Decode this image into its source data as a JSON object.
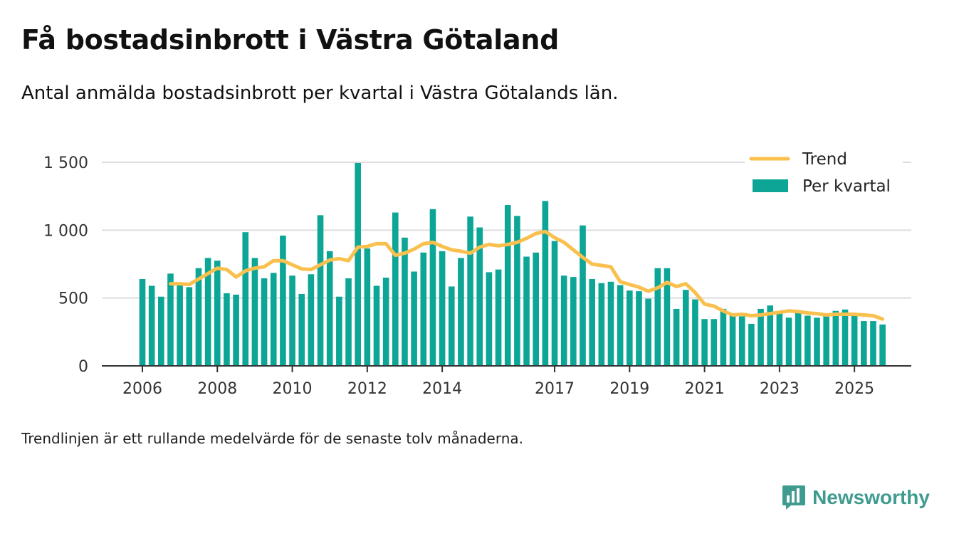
{
  "header": {
    "title": "Få bostadsinbrott i Västra Götaland",
    "subtitle": "Antal anmälda bostadsinbrott per kvartal i Västra Götalands län."
  },
  "footer": {
    "note": "Trendlinjen är ett rullande medelvärde för de senaste tolv månaderna.",
    "brand": "Newsworthy"
  },
  "colors": {
    "bar": "#0ca596",
    "trend": "#f9c04d",
    "grid": "#dddddd",
    "axis": "#333333",
    "brand": "#3f9b8f"
  },
  "chart_data": {
    "type": "bar",
    "title": "Få bostadsinbrott i Västra Götaland",
    "xlabel": "",
    "ylabel": "",
    "ylim": [
      0,
      1500
    ],
    "yticks": [
      0,
      500,
      1000,
      1500
    ],
    "ytick_labels": [
      "0",
      "500",
      "1 000",
      "1 500"
    ],
    "xtick_labels": [
      "2006",
      "2008",
      "2010",
      "2012",
      "2014",
      "2017",
      "2019",
      "2021",
      "2023",
      "2025"
    ],
    "xtick_index": [
      0,
      8,
      16,
      24,
      32,
      44,
      52,
      60,
      68,
      76
    ],
    "grid": true,
    "legend": {
      "position": "top-right",
      "entries": [
        "Trend",
        "Per kvartal"
      ]
    },
    "categories": [
      "2006 Q1",
      "2006 Q2",
      "2006 Q3",
      "2006 Q4",
      "2007 Q1",
      "2007 Q2",
      "2007 Q3",
      "2007 Q4",
      "2008 Q1",
      "2008 Q2",
      "2008 Q3",
      "2008 Q4",
      "2009 Q1",
      "2009 Q2",
      "2009 Q3",
      "2009 Q4",
      "2010 Q1",
      "2010 Q2",
      "2010 Q3",
      "2010 Q4",
      "2011 Q1",
      "2011 Q2",
      "2011 Q3",
      "2011 Q4",
      "2012 Q1",
      "2012 Q2",
      "2012 Q3",
      "2012 Q4",
      "2013 Q1",
      "2013 Q2",
      "2013 Q3",
      "2013 Q4",
      "2014 Q1",
      "2014 Q2",
      "2014 Q3",
      "2014 Q4",
      "2015 Q1",
      "2015 Q2",
      "2015 Q3",
      "2015 Q4",
      "2016 Q1",
      "2016 Q2",
      "2016 Q3",
      "2016 Q4",
      "2017 Q1",
      "2017 Q2",
      "2017 Q3",
      "2017 Q4",
      "2018 Q1",
      "2018 Q2",
      "2018 Q3",
      "2018 Q4",
      "2019 Q1",
      "2019 Q2",
      "2019 Q3",
      "2019 Q4",
      "2020 Q1",
      "2020 Q2",
      "2020 Q3",
      "2020 Q4",
      "2021 Q1",
      "2021 Q2",
      "2021 Q3",
      "2021 Q4",
      "2022 Q1",
      "2022 Q2",
      "2022 Q3",
      "2022 Q4",
      "2023 Q1",
      "2023 Q2",
      "2023 Q3",
      "2023 Q4",
      "2024 Q1",
      "2024 Q2",
      "2024 Q3",
      "2024 Q4",
      "2025 Q1",
      "2025 Q2",
      "2025 Q3",
      "2025 Q4"
    ],
    "series": [
      {
        "name": "Per kvartal",
        "type": "bar",
        "values": [
          640,
          590,
          510,
          680,
          600,
          580,
          720,
          795,
          775,
          535,
          525,
          985,
          795,
          645,
          685,
          960,
          665,
          530,
          675,
          1110,
          845,
          510,
          645,
          1495,
          865,
          590,
          650,
          1130,
          945,
          695,
          835,
          1155,
          845,
          585,
          795,
          1100,
          1020,
          690,
          710,
          1185,
          1105,
          805,
          835,
          1215,
          920,
          665,
          655,
          1035,
          640,
          610,
          620,
          595,
          555,
          550,
          495,
          720,
          720,
          420,
          560,
          490,
          345,
          345,
          420,
          380,
          365,
          310,
          420,
          445,
          395,
          355,
          395,
          370,
          355,
          375,
          405,
          415,
          375,
          330,
          330,
          305
        ]
      },
      {
        "name": "Trend",
        "type": "line",
        "values": [
          null,
          null,
          null,
          605,
          605,
          600,
          640,
          680,
          720,
          710,
          655,
          700,
          720,
          730,
          775,
          775,
          745,
          715,
          710,
          745,
          780,
          790,
          775,
          875,
          880,
          900,
          900,
          815,
          830,
          860,
          900,
          910,
          880,
          855,
          845,
          830,
          875,
          895,
          885,
          895,
          910,
          940,
          975,
          990,
          945,
          910,
          855,
          800,
          750,
          740,
          730,
          620,
          600,
          580,
          550,
          575,
          615,
          585,
          605,
          540,
          455,
          440,
          405,
          375,
          380,
          370,
          375,
          385,
          395,
          405,
          400,
          390,
          385,
          375,
          380,
          380,
          380,
          375,
          370,
          345
        ]
      }
    ]
  }
}
